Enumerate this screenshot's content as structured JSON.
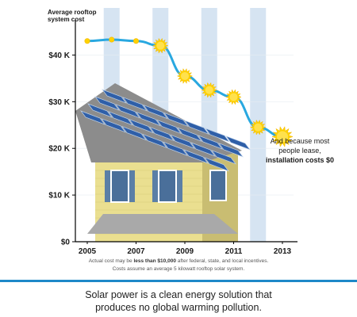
{
  "chart_data": {
    "type": "line",
    "series_label": [
      "Average rooftop",
      "system cost"
    ],
    "x": [
      2005,
      2006,
      2007,
      2008,
      2009,
      2010,
      2011,
      2012,
      2013
    ],
    "values": [
      43,
      43.3,
      43,
      42,
      35.5,
      32.5,
      31,
      24.5,
      22.5
    ],
    "xticks": [
      "2005",
      "2007",
      "2009",
      "2011",
      "2013"
    ],
    "yticks": [
      "$0",
      "$10 K",
      "$20 K",
      "$30 K",
      "$40 K"
    ],
    "ylim": [
      0,
      45
    ],
    "annotation": [
      "And because most",
      "people lease,",
      "installation costs $0"
    ],
    "colors": {
      "line": "#29a8e0",
      "marker": "#ffd200",
      "column": "#d6e4f2"
    }
  },
  "footnote": {
    "line1_prefix": "Actual cost may be ",
    "line1_bold": "less than $10,000",
    "line1_suffix": " after federal, state, and local incentives.",
    "line2": "Costs assume an average 5 kilowatt rooftop solar system."
  },
  "tagline": {
    "line1": "Solar power is a clean energy solution that",
    "line2": "produces no global warming pollution."
  }
}
